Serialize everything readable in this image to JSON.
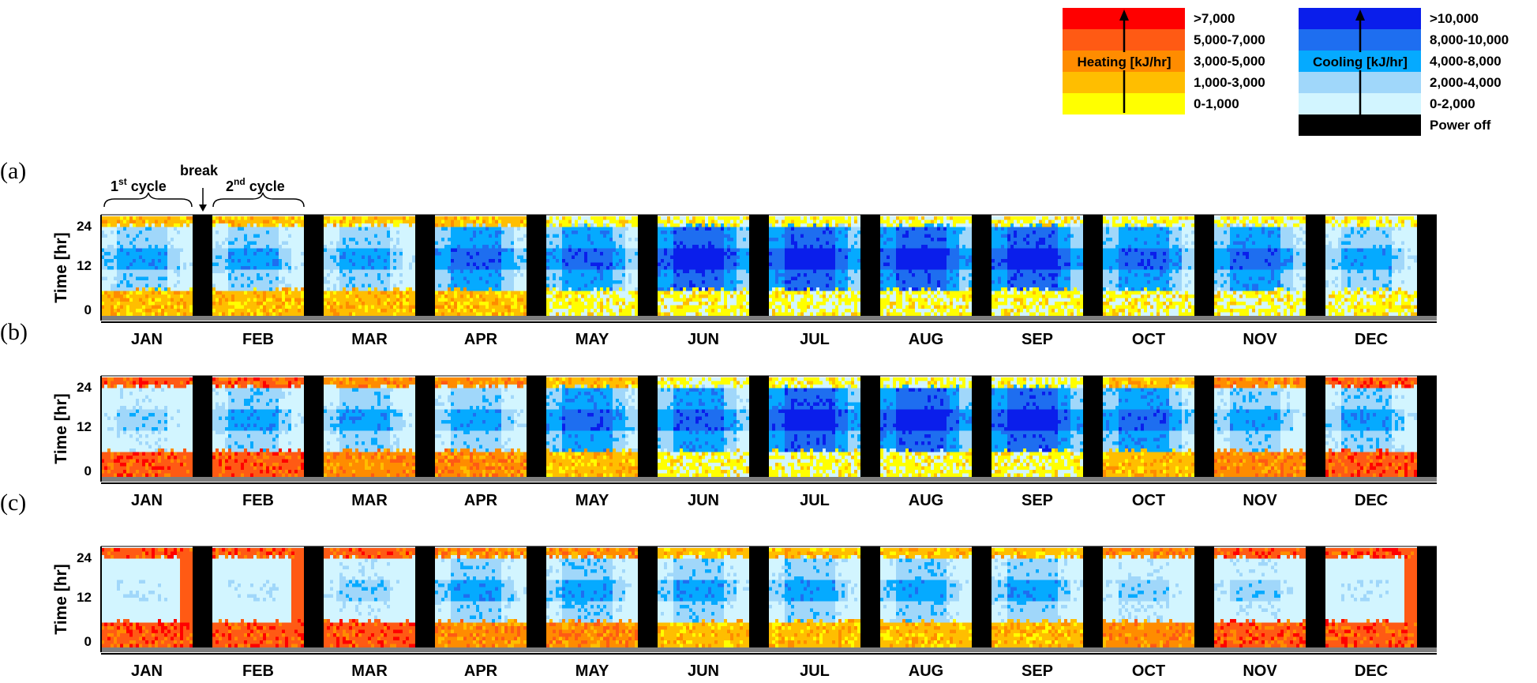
{
  "chart_data": {
    "type": "heatmap",
    "months": [
      "JAN",
      "FEB",
      "MAR",
      "APR",
      "MAY",
      "JUN",
      "JUL",
      "AUG",
      "SEP",
      "OCT",
      "NOV",
      "DEC"
    ],
    "ylabel": "Time [hr]",
    "yticks": [
      "24",
      "12",
      "0"
    ],
    "ylim": [
      0,
      24
    ],
    "annotations": {
      "first_cycle": "1",
      "first_cycle_sup": "st",
      "first_cycle_word": "cycle",
      "break": "break",
      "second_cycle": "2",
      "second_cycle_sup": "nd",
      "second_cycle_word": "cycle"
    },
    "legend_heating": {
      "title": "Heating [kJ/hr]",
      "bins": [
        {
          "label": ">7,000",
          "color": "#ff0000"
        },
        {
          "label": "5,000-7,000",
          "color": "#ff5a14"
        },
        {
          "label": "3,000-5,000",
          "color": "#ff8c00"
        },
        {
          "label": "1,000-3,000",
          "color": "#ffbe00"
        },
        {
          "label": "0-1,000",
          "color": "#ffff00"
        }
      ]
    },
    "legend_cooling": {
      "title": "Cooling [kJ/hr]",
      "bins": [
        {
          "label": ">10,000",
          "color": "#0a1eeb"
        },
        {
          "label": "8,000-10,000",
          "color": "#1e6ef0"
        },
        {
          "label": "4,000-8,000",
          "color": "#05aaff"
        },
        {
          "label": "2,000-4,000",
          "color": "#a0d7fa"
        },
        {
          "label": "0-2,000",
          "color": "#d2f5ff"
        },
        {
          "label": "Power off",
          "color": "#000000"
        }
      ]
    },
    "panels": [
      {
        "label": "(a)",
        "profile": {
          "heat": [
            1,
            1,
            1,
            1,
            0,
            0,
            0,
            0,
            0,
            0,
            0,
            0
          ],
          "cool": [
            2,
            2,
            2,
            3,
            3,
            4,
            4,
            4,
            4,
            3,
            3,
            2
          ]
        }
      },
      {
        "label": "(b)",
        "profile": {
          "heat": [
            3,
            3,
            2,
            2,
            1,
            0,
            0,
            0,
            0,
            1,
            2,
            3
          ],
          "cool": [
            1,
            2,
            2,
            2,
            3,
            3,
            4,
            4,
            4,
            3,
            2,
            2
          ]
        }
      },
      {
        "label": "(c)",
        "profile": {
          "heat": [
            3,
            3,
            3,
            2,
            2,
            1,
            1,
            1,
            1,
            2,
            3,
            3
          ],
          "cool": [
            0,
            0,
            1,
            2,
            2,
            2,
            2,
            2,
            2,
            1,
            1,
            0
          ]
        }
      }
    ]
  }
}
